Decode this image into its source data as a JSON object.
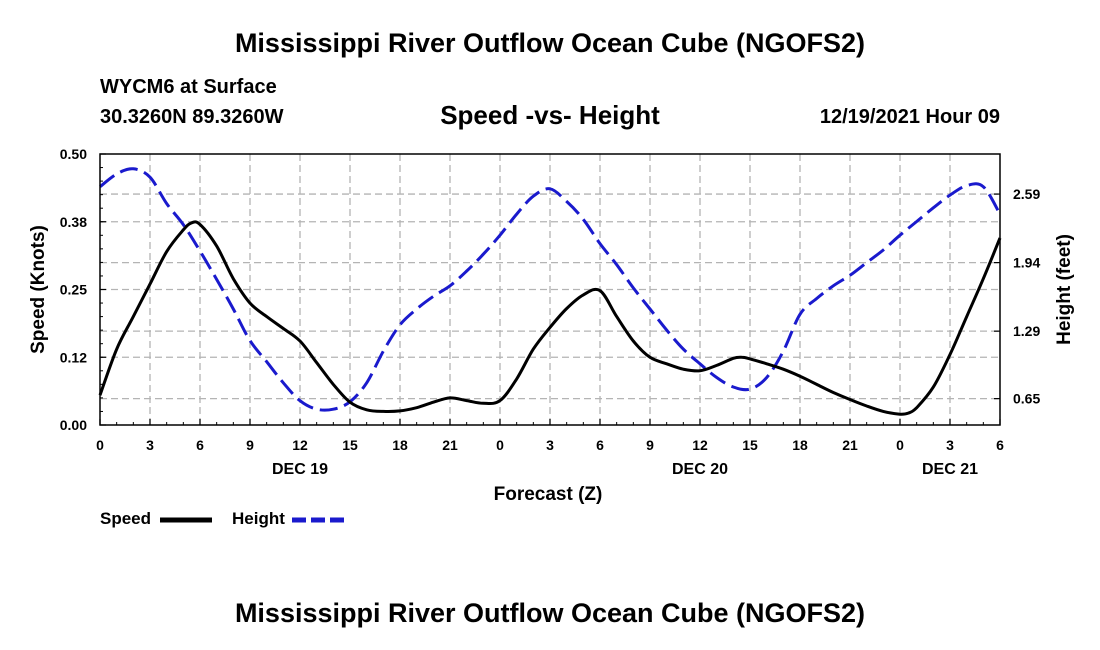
{
  "page": {
    "title": "Mississippi River Outflow Ocean Cube (NGOFS2)",
    "footer_title": "Mississippi River Outflow Ocean Cube (NGOFS2)",
    "station": "WYCM6 at Surface",
    "coordinates": "30.3260N  89.3260W",
    "timestamp": "12/19/2021 Hour 09"
  },
  "chart_data": {
    "type": "line",
    "title": "Speed -vs- Height",
    "xlabel": "Forecast (Z)",
    "ylabel": "Speed (Knots)",
    "y2label": "Height (feet)",
    "x_unit": "hours from 00Z Dec 19, 2021",
    "xlim": [
      0,
      54
    ],
    "ylim": [
      0,
      0.5
    ],
    "y2lim": [
      0.4,
      2.97
    ],
    "grid": true,
    "legend_position": "bottom-left",
    "x_ticks": [
      0,
      3,
      6,
      9,
      12,
      15,
      18,
      21,
      24,
      27,
      30,
      33,
      36,
      39,
      42,
      45,
      48,
      51,
      54
    ],
    "x_tick_labels": [
      "0",
      "3",
      "6",
      "9",
      "12",
      "15",
      "18",
      "21",
      "0",
      "3",
      "6",
      "9",
      "12",
      "15",
      "18",
      "21",
      "0",
      "3",
      "6"
    ],
    "date_labels": [
      {
        "x": 12,
        "label": "DEC 19"
      },
      {
        "x": 36,
        "label": "DEC 20"
      },
      {
        "x": 51,
        "label": "DEC 21"
      }
    ],
    "y_ticks": [
      0.0,
      0.125,
      0.25,
      0.375,
      0.5
    ],
    "y_tick_labels": [
      "0.00",
      "0.12",
      "0.25",
      "0.38",
      "0.50"
    ],
    "y2_ticks": [
      0.65,
      1.29,
      1.94,
      2.59
    ],
    "y2_tick_labels": [
      "0.65",
      "1.29",
      "1.94",
      "2.59"
    ],
    "series": [
      {
        "name": "Speed",
        "axis": "left",
        "color": "#000000",
        "dash": "solid",
        "x": [
          0,
          1,
          2,
          3,
          4,
          5,
          5.5,
          6,
          7,
          8,
          9,
          10,
          11,
          12,
          13,
          14,
          15,
          16,
          17,
          18,
          19,
          20,
          21,
          22,
          23,
          24,
          25,
          26,
          27,
          28,
          29,
          30,
          31,
          32,
          33,
          34,
          35,
          36,
          37,
          38,
          38.5,
          39,
          40,
          41,
          42,
          43,
          44,
          45,
          46,
          47,
          48,
          48.5,
          49,
          50,
          51,
          52,
          53,
          54
        ],
        "y": [
          0.055,
          0.14,
          0.2,
          0.26,
          0.32,
          0.36,
          0.373,
          0.37,
          0.33,
          0.27,
          0.225,
          0.2,
          0.178,
          0.155,
          0.115,
          0.075,
          0.042,
          0.028,
          0.025,
          0.026,
          0.032,
          0.042,
          0.05,
          0.045,
          0.04,
          0.045,
          0.085,
          0.14,
          0.18,
          0.215,
          0.24,
          0.248,
          0.2,
          0.155,
          0.125,
          0.113,
          0.103,
          0.1,
          0.11,
          0.123,
          0.125,
          0.122,
          0.113,
          0.103,
          0.09,
          0.075,
          0.06,
          0.047,
          0.035,
          0.025,
          0.02,
          0.022,
          0.032,
          0.07,
          0.13,
          0.2,
          0.27,
          0.345
        ]
      },
      {
        "name": "Height",
        "axis": "right",
        "color": "#1a1acd",
        "dash": "dashed",
        "x": [
          0,
          1,
          2,
          3,
          4,
          5,
          6,
          7,
          8,
          9,
          10,
          11,
          12,
          13,
          14,
          15,
          16,
          17,
          18,
          19,
          20,
          21,
          22,
          23,
          24,
          25,
          26,
          27,
          28,
          29,
          30,
          31,
          32,
          33,
          34,
          35,
          36,
          37,
          38,
          39,
          40,
          41,
          42,
          43,
          44,
          45,
          46,
          47,
          48,
          49,
          50,
          51,
          52,
          53,
          54
        ],
        "y": [
          2.66,
          2.78,
          2.83,
          2.75,
          2.5,
          2.3,
          2.05,
          1.78,
          1.5,
          1.2,
          1.0,
          0.8,
          0.63,
          0.55,
          0.55,
          0.62,
          0.8,
          1.1,
          1.35,
          1.5,
          1.62,
          1.72,
          1.86,
          2.02,
          2.2,
          2.4,
          2.57,
          2.64,
          2.52,
          2.35,
          2.12,
          1.92,
          1.7,
          1.5,
          1.3,
          1.12,
          0.98,
          0.85,
          0.76,
          0.74,
          0.85,
          1.1,
          1.45,
          1.6,
          1.72,
          1.82,
          1.94,
          2.06,
          2.2,
          2.33,
          2.46,
          2.58,
          2.67,
          2.66,
          2.4
        ]
      }
    ]
  }
}
